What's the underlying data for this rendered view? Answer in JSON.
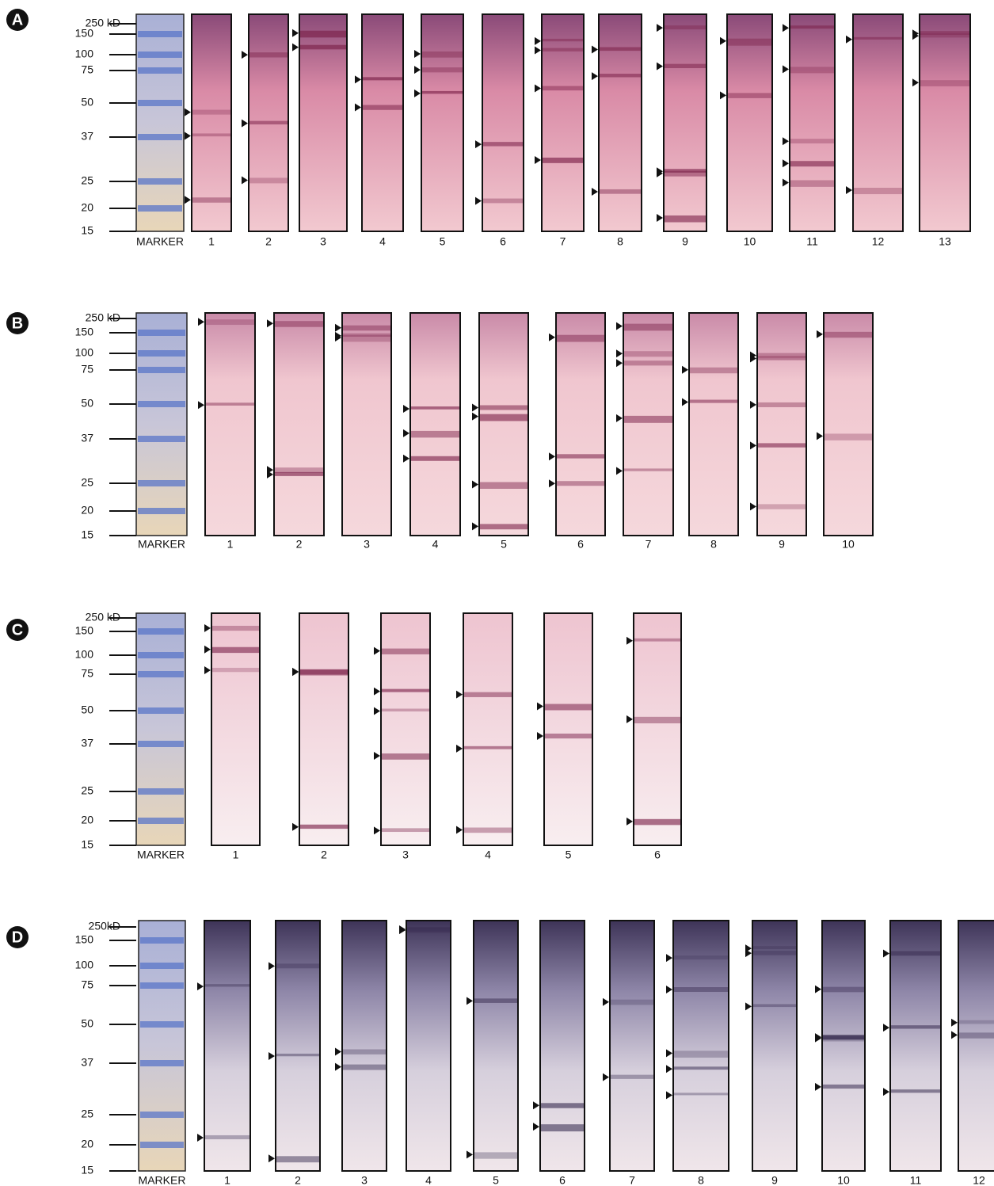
{
  "panels": [
    {
      "label": "A",
      "markers": [
        "250 kD",
        "150",
        "100",
        "75",
        "50",
        "37",
        "25",
        "20",
        "15"
      ],
      "marker_label": "MARKER",
      "lanes": [
        "1",
        "2",
        "3",
        "4",
        "5",
        "6",
        "7",
        "8",
        "9",
        "10",
        "11",
        "12",
        "13"
      ]
    },
    {
      "label": "B",
      "markers": [
        "250 kD",
        "150",
        "100",
        "75",
        "50",
        "37",
        "25",
        "20",
        "15"
      ],
      "marker_label": "MARKER",
      "lanes": [
        "1",
        "2",
        "3",
        "4",
        "5",
        "6",
        "7",
        "8",
        "9",
        "10"
      ]
    },
    {
      "label": "C",
      "markers": [
        "250 kD",
        "150",
        "100",
        "75",
        "50",
        "37",
        "25",
        "20",
        "15"
      ],
      "marker_label": "MARKER",
      "lanes": [
        "1",
        "2",
        "3",
        "4",
        "5",
        "6"
      ]
    },
    {
      "label": "D",
      "markers": [
        "250kD",
        "150",
        "100",
        "75",
        "50",
        "37",
        "25",
        "20",
        "15"
      ],
      "marker_label": "MARKER",
      "lanes": [
        "1",
        "2",
        "3",
        "4",
        "5",
        "6",
        "7",
        "8",
        "9",
        "10",
        "11",
        "12"
      ]
    }
  ]
}
